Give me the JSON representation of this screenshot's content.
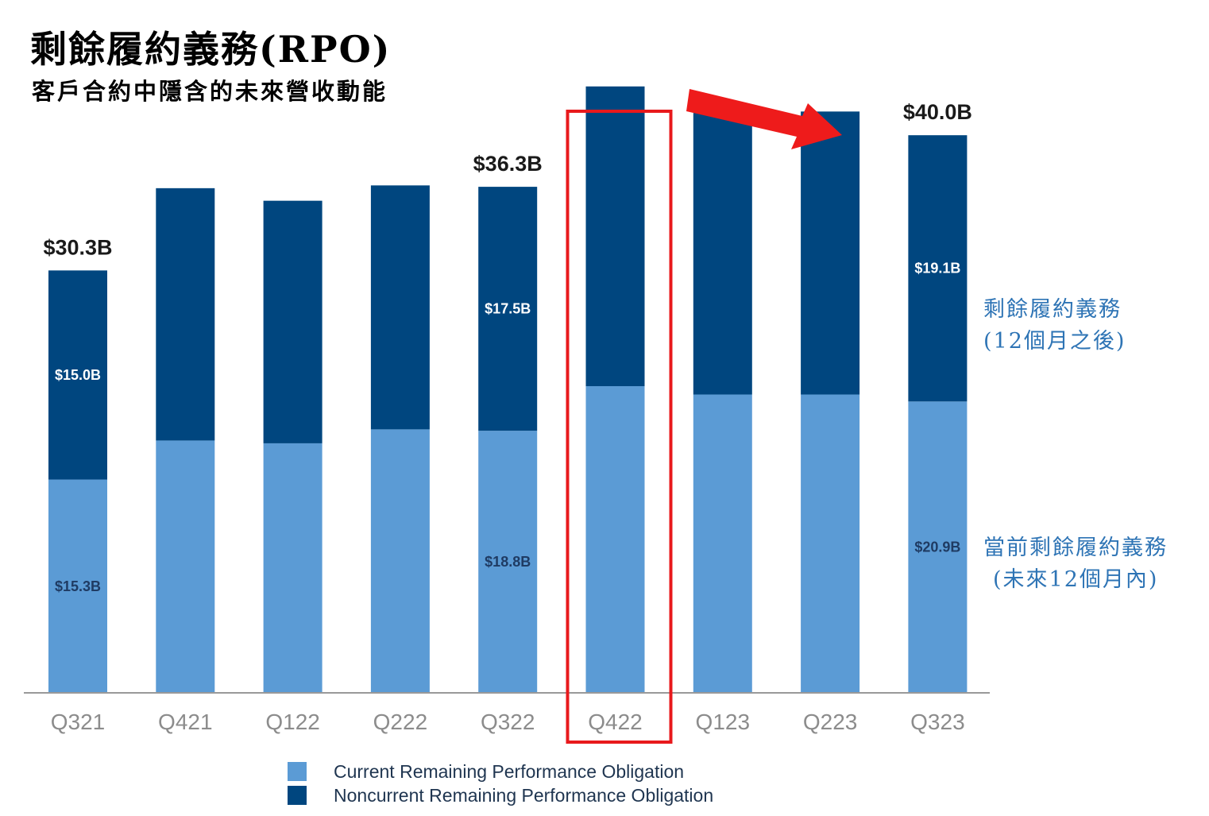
{
  "title": "剩餘履約義務(RPO)",
  "subtitle": "客戶合約中隱含的未來營收動能",
  "side_labels": {
    "noncurrent": [
      "剩餘履約義務",
      "(12個月之後)"
    ],
    "current": [
      "當前剩餘履約義務",
      "(未來12個月內)"
    ]
  },
  "colors": {
    "current": "#5b9bd5",
    "noncurrent": "#00467f",
    "axis": "#999999",
    "highlight_box": "#e8191c",
    "arrow": "#ee1b1b",
    "side_label": "#2e74b5"
  },
  "legend": [
    {
      "label": "Current Remaining Performance Obligation",
      "color": "#5b9bd5"
    },
    {
      "label": "Noncurrent Remaining Performance Obligation",
      "color": "#00467f"
    }
  ],
  "chart_data": {
    "type": "bar",
    "stacked": true,
    "categories": [
      "Q321",
      "Q421",
      "Q122",
      "Q222",
      "Q322",
      "Q422",
      "Q123",
      "Q223",
      "Q323"
    ],
    "series": [
      {
        "name": "Current Remaining Performance Obligation",
        "values": [
          15.3,
          18.1,
          17.9,
          18.9,
          18.8,
          22.0,
          21.4,
          21.4,
          20.9
        ]
      },
      {
        "name": "Noncurrent Remaining Performance Obligation",
        "values": [
          15.0,
          18.1,
          17.4,
          17.5,
          17.5,
          21.5,
          20.2,
          20.3,
          19.1
        ]
      }
    ],
    "segment_labels": {
      "Q321": {
        "current": "$15.3B",
        "noncurrent": "$15.0B"
      },
      "Q322": {
        "current": "$18.8B",
        "noncurrent": "$17.5B"
      },
      "Q323": {
        "current": "$20.9B",
        "noncurrent": "$19.1B"
      }
    },
    "total_labels": {
      "Q321": "$30.3B",
      "Q322": "$36.3B",
      "Q323": "$40.0B"
    },
    "highlighted_category": "Q422",
    "ylim": [
      0,
      44
    ],
    "grid": false,
    "legend_position": "bottom"
  }
}
